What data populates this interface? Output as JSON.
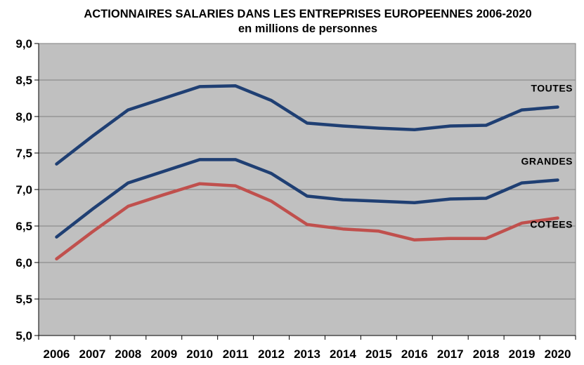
{
  "chart_data": {
    "type": "line",
    "title": "ACTIONNAIRES SALARIES DANS LES ENTREPRISES EUROPEENNES 2006-2020",
    "subtitle": "en millions de personnes",
    "xlabel": "",
    "ylabel": "",
    "x": [
      "2006",
      "2007",
      "2008",
      "2009",
      "2010",
      "2011",
      "2012",
      "2013",
      "2014",
      "2015",
      "2016",
      "2017",
      "2018",
      "2019",
      "2020"
    ],
    "ylim": [
      5.0,
      9.0
    ],
    "yticks": [
      "5,0",
      "5,5",
      "6,0",
      "6,5",
      "7,0",
      "7,5",
      "8,0",
      "8,5",
      "9,0"
    ],
    "ytick_values": [
      5.0,
      5.5,
      6.0,
      6.5,
      7.0,
      7.5,
      8.0,
      8.5,
      9.0
    ],
    "grid": true,
    "plot_background": "#c0c0c0",
    "series": [
      {
        "name": "TOUTES",
        "color": "#1f3f73",
        "values": [
          7.35,
          7.73,
          8.09,
          8.25,
          8.41,
          8.42,
          8.22,
          7.91,
          7.87,
          7.84,
          7.82,
          7.87,
          7.88,
          8.09,
          8.13
        ]
      },
      {
        "name": "GRANDES",
        "color": "#1f3f73",
        "values": [
          6.35,
          6.73,
          7.09,
          7.25,
          7.41,
          7.41,
          7.22,
          6.91,
          6.86,
          6.84,
          6.82,
          6.87,
          6.88,
          7.09,
          7.13
        ]
      },
      {
        "name": "COTEES",
        "color": "#c0504d",
        "values": [
          6.05,
          6.42,
          6.77,
          6.93,
          7.08,
          7.05,
          6.84,
          6.52,
          6.46,
          6.43,
          6.31,
          6.33,
          6.33,
          6.54,
          6.61
        ]
      }
    ]
  }
}
